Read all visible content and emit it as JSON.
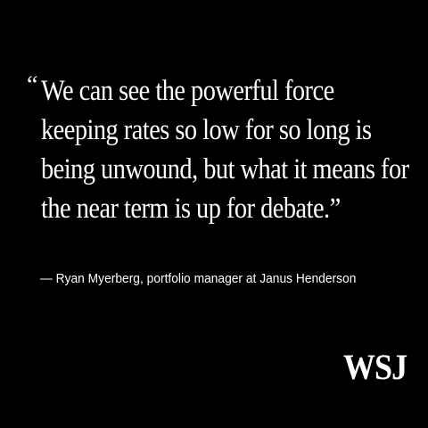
{
  "quote": {
    "open_mark": "“",
    "lines": [
      "We can see the powerful force",
      "keeping rates so low for so long is",
      "being unwound, but what it means for",
      "the near term is up for debate.”"
    ]
  },
  "attribution": {
    "text": "— Ryan Myerberg, portfolio manager at Janus Henderson"
  },
  "logo": {
    "text": "WSJ"
  },
  "colors": {
    "background": "#000000",
    "text": "#ffffff"
  }
}
